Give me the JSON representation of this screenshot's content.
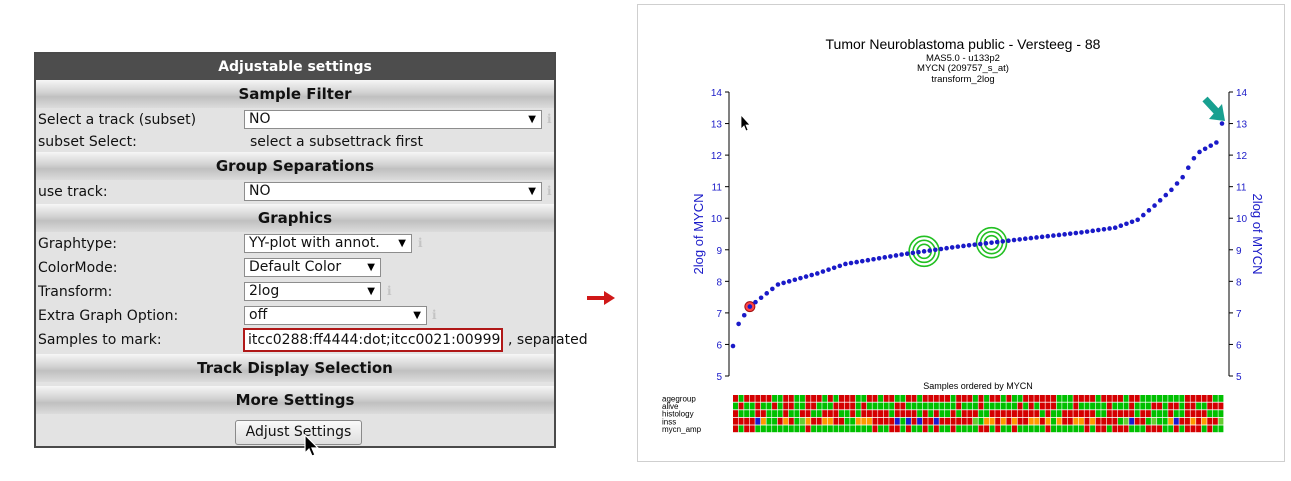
{
  "settings": {
    "title": "Adjustable settings",
    "sections": {
      "sample_filter": "Sample Filter",
      "group_separations": "Group Separations",
      "graphics": "Graphics",
      "track_display": "Track Display Selection",
      "more_settings": "More Settings"
    },
    "track_subset": {
      "label": "Select a track (subset)",
      "value": "NO"
    },
    "subset_select": {
      "label": "subset Select:",
      "value": "select a subsettrack first"
    },
    "use_track": {
      "label": "use track:",
      "value": "NO"
    },
    "graphtype": {
      "label": "Graphtype:",
      "value": "YY-plot with annot."
    },
    "colormode": {
      "label": "ColorMode:",
      "value": "Default Color"
    },
    "transform": {
      "label": "Transform:",
      "value": "2log"
    },
    "extra_graph": {
      "label": "Extra Graph Option:",
      "value": "off"
    },
    "samples_to_mark": {
      "label": "Samples to mark:",
      "value": "itcc0288:ff4444:dot;itcc0021:00999",
      "suffix": ", separated"
    },
    "adjust_button": "Adjust Settings",
    "info_glyph": "i"
  },
  "chart_data": {
    "type": "scatter",
    "title": "Tumor Neuroblastoma public - Versteeg - 88",
    "subtitle_lines": [
      "MAS5.0 - u133p2",
      "MYCN (209757_s_at)",
      "transform_2log"
    ],
    "ylabel": "2log of MYCN",
    "xlabel": "Samples ordered by MYCN",
    "ylim": [
      5,
      14
    ],
    "yticks": [
      "5",
      "6",
      "7",
      "8",
      "9",
      "10",
      "11",
      "12",
      "13",
      "14"
    ],
    "point_color": "#1a1ac8",
    "n_samples": 88,
    "y_knots": [
      [
        0,
        5.95
      ],
      [
        1,
        6.65
      ],
      [
        3,
        7.2
      ],
      [
        8,
        7.9
      ],
      [
        15,
        8.25
      ],
      [
        20,
        8.55
      ],
      [
        30,
        8.85
      ],
      [
        40,
        9.1
      ],
      [
        52,
        9.35
      ],
      [
        62,
        9.55
      ],
      [
        68,
        9.7
      ],
      [
        72,
        9.95
      ],
      [
        75,
        10.4
      ],
      [
        78,
        10.9
      ],
      [
        80,
        11.3
      ],
      [
        82,
        11.9
      ],
      [
        83,
        12.1
      ],
      [
        86,
        12.4
      ],
      [
        87,
        13.0
      ]
    ],
    "marked_samples": [
      {
        "index": 3,
        "style": "red-dot",
        "color": "#ff4444"
      },
      {
        "index": 34,
        "style": "green-rings",
        "color": "#22c022"
      },
      {
        "index": 46,
        "style": "green-rings",
        "color": "#22c022"
      }
    ],
    "annotation_tracks": [
      {
        "name": "agegroup",
        "colors": [
          "#d40000",
          "#00c000"
        ]
      },
      {
        "name": "alive",
        "colors": [
          "#00c000",
          "#d40000"
        ]
      },
      {
        "name": "histology",
        "colors": [
          "#d40000",
          "#00c000"
        ]
      },
      {
        "name": "inss",
        "colors": [
          "#d40000",
          "#ff9900",
          "#00c000",
          "#1a1ad0",
          "#66cc33"
        ]
      },
      {
        "name": "mycn_amp",
        "colors": [
          "#00c000",
          "#d40000"
        ]
      }
    ],
    "teal_arrow_color": "#18a090"
  },
  "colors": {
    "accent_red": "#d01818",
    "header_dark": "#4d4d4d"
  }
}
